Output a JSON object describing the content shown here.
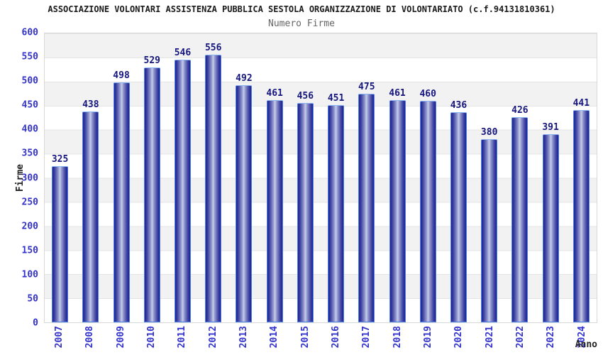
{
  "header": {
    "title": "ASSOCIAZIONE VOLONTARI ASSISTENZA PUBBLICA SESTOLA ORGANIZZAZIONE DI VOLONTARIATO (c.f.94131810361)",
    "subtitle": "Numero Firme"
  },
  "chart_data": {
    "type": "bar",
    "title": "Numero Firme",
    "xlabel": "Anno",
    "ylabel": "Firme",
    "categories": [
      "2007",
      "2008",
      "2009",
      "2010",
      "2011",
      "2012",
      "2013",
      "2014",
      "2015",
      "2016",
      "2017",
      "2018",
      "2019",
      "2020",
      "2021",
      "2022",
      "2023",
      "2024"
    ],
    "values": [
      325,
      438,
      498,
      529,
      546,
      556,
      492,
      461,
      456,
      451,
      475,
      461,
      460,
      436,
      380,
      426,
      391,
      441
    ],
    "ylim": [
      0,
      600
    ],
    "yticks": [
      0,
      50,
      100,
      150,
      200,
      250,
      300,
      350,
      400,
      450,
      500,
      550,
      600
    ],
    "grid": "horizontal-alternating-bands",
    "legend_position": "none",
    "colors": {
      "axis_tick_label": "#3333cc",
      "value_label": "#16167f",
      "bar_dark": "#1f2190",
      "bar_mid": "#8d94cc",
      "bar_light": "#c9cdeb",
      "bar_border": "#4d82ec",
      "band_gray": "#f2f2f2",
      "gridline": "#e4e4e4",
      "plot_border": "#d8d8d8",
      "title_color": "#1a1a1a",
      "subtitle_color": "#666666"
    }
  }
}
